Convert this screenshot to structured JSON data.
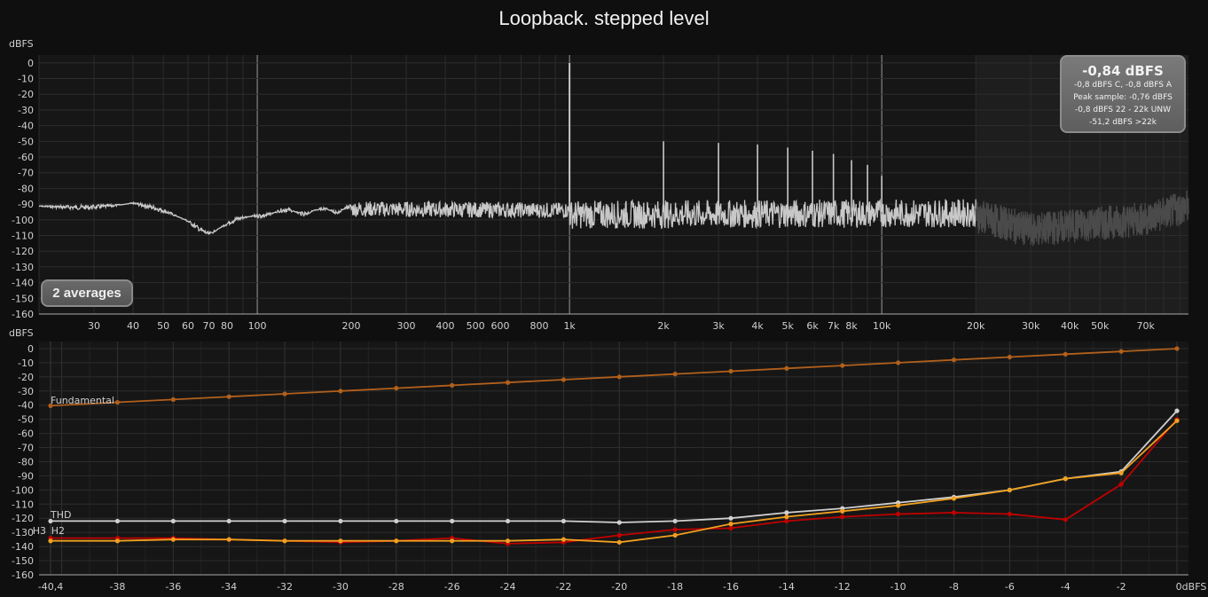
{
  "title": "Loopback. stepped level",
  "colors": {
    "background": "#0f0f0f",
    "grid": "#2c2c2c",
    "spectrum": "#c8c8c8",
    "spectrum_out_of_band": "#4a4a4a",
    "fundamental": "#b2601c",
    "thd": "#d0d0d0",
    "h2": "#c00000",
    "h3": "#f0a020"
  },
  "averages_button": {
    "label": "2 averages"
  },
  "readout": {
    "main": "-0,84 dBFS",
    "lines": [
      "-0,8 dBFS C, -0,8 dBFS A",
      "Peak sample: -0,76 dBFS",
      "-0,8 dBFS 22 - 22k UNW",
      "-51,2 dBFS >22k"
    ]
  },
  "chart_data": [
    {
      "type": "line",
      "name": "spectrum",
      "ylabel": "dBFS",
      "ylim": [
        -160,
        5
      ],
      "xscale": "log",
      "xlim": [
        20,
        96000
      ],
      "yticks": [
        0,
        -10,
        -20,
        -30,
        -40,
        -50,
        -60,
        -70,
        -80,
        -90,
        -100,
        -110,
        -120,
        -130,
        -140,
        -150,
        -160
      ],
      "xtick_labels": [
        "30",
        "40",
        "50",
        "60",
        "70",
        "80",
        "100",
        "200",
        "300",
        "400",
        "500",
        "600",
        "800",
        "1k",
        "2k",
        "3k",
        "4k",
        "5k",
        "6k",
        "7k",
        "8k",
        "10k",
        "20k",
        "30k",
        "40k",
        "50k",
        "70k"
      ],
      "xtick_values": [
        30,
        40,
        50,
        60,
        70,
        80,
        100,
        200,
        300,
        400,
        500,
        600,
        800,
        1000,
        2000,
        3000,
        4000,
        5000,
        6000,
        7000,
        8000,
        10000,
        20000,
        30000,
        40000,
        50000,
        70000
      ],
      "harmonics": {
        "x": [
          1000,
          2000,
          3000,
          4000,
          5000,
          6000,
          7000,
          8000,
          9000,
          10000
        ],
        "y": [
          0,
          -50,
          -51,
          -52,
          -54,
          -56,
          -58,
          -62,
          -65,
          -72
        ]
      },
      "noise_floor_approx": [
        [
          20,
          -91
        ],
        [
          40,
          -90
        ],
        [
          60,
          -100
        ],
        [
          70,
          -108
        ],
        [
          100,
          -96
        ],
        [
          200,
          -93
        ],
        [
          1000,
          -94
        ],
        [
          20000,
          -93
        ],
        [
          30000,
          -102
        ],
        [
          70000,
          -95
        ],
        [
          96000,
          -87
        ]
      ],
      "grid": true
    },
    {
      "type": "line",
      "name": "stepped-level",
      "ylabel": "dBFS",
      "ylim": [
        -160,
        5
      ],
      "xlim": [
        -40.4,
        0
      ],
      "yticks": [
        0,
        -10,
        -20,
        -30,
        -40,
        -50,
        -60,
        -70,
        -80,
        -90,
        -100,
        -110,
        -120,
        -130,
        -140,
        -150,
        -160
      ],
      "xtick_labels": [
        "-40,4",
        "-38",
        "-36",
        "-34",
        "-32",
        "-30",
        "-28",
        "-26",
        "-24",
        "-22",
        "-20",
        "-18",
        "-16",
        "-14",
        "-12",
        "-10",
        "-8",
        "-6",
        "-4",
        "-2",
        "0dBFS"
      ],
      "xtick_values": [
        -40.4,
        -38,
        -36,
        -34,
        -32,
        -30,
        -28,
        -26,
        -24,
        -22,
        -20,
        -18,
        -16,
        -14,
        -12,
        -10,
        -8,
        -6,
        -4,
        -2,
        0
      ],
      "x": [
        -40.4,
        -38,
        -36,
        -34,
        -32,
        -30,
        -28,
        -26,
        -24,
        -22,
        -20,
        -18,
        -16,
        -14,
        -12,
        -10,
        -8,
        -6,
        -4,
        -2,
        0
      ],
      "series": [
        {
          "name": "Fundamental",
          "values": [
            -40.4,
            -38,
            -36,
            -34,
            -32,
            -30,
            -28,
            -26,
            -24,
            -22,
            -20,
            -18,
            -16,
            -14,
            -12,
            -10,
            -8,
            -6,
            -4,
            -2,
            0
          ]
        },
        {
          "name": "THD",
          "values": [
            -122,
            -122,
            -122,
            -122,
            -122,
            -122,
            -122,
            -122,
            -122,
            -122,
            -123,
            -122,
            -120,
            -116,
            -113,
            -109,
            -105,
            -100,
            -92,
            -87,
            -44
          ]
        },
        {
          "name": "H2",
          "values": [
            -134,
            -134,
            -134,
            -135,
            -136,
            -137,
            -136,
            -134,
            -138,
            -137,
            -132,
            -128,
            -127,
            -122,
            -119,
            -117,
            -116,
            -117,
            -121,
            -96,
            -50
          ]
        },
        {
          "name": "H3",
          "values": [
            -136,
            -136,
            -135,
            -135,
            -136,
            -136,
            -136,
            -136,
            -136,
            -135,
            -137,
            -132,
            -124,
            -119,
            -115,
            -111,
            -106,
            -100,
            -92,
            -88,
            -51
          ]
        }
      ],
      "grid": true
    }
  ]
}
